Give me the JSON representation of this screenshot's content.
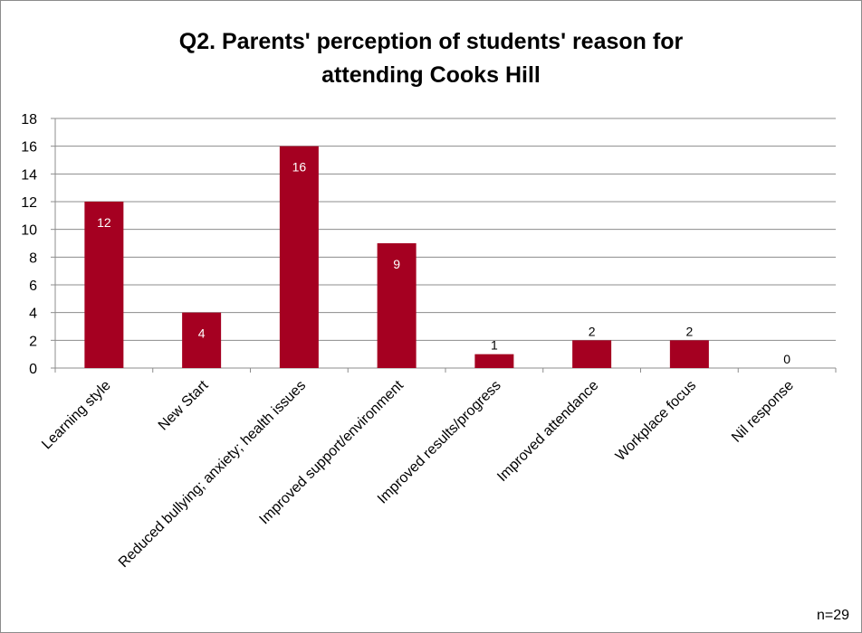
{
  "chart_data": {
    "type": "bar",
    "title_lines": [
      "Q2. Parents' perception of students' reason for",
      "attending Cooks Hill"
    ],
    "categories": [
      "Learning style",
      "New Start",
      "Reduced bullying; anxiety; health issues",
      "Improved support/environment",
      "Improved results/progress",
      "Improved attendance",
      "Workplace focus",
      "Nil response"
    ],
    "values": [
      12,
      4,
      16,
      9,
      1,
      2,
      2,
      0
    ],
    "ylim": [
      0,
      18
    ],
    "yticks": [
      0,
      2,
      4,
      6,
      8,
      10,
      12,
      14,
      16,
      18
    ],
    "grid": true,
    "bar_color": "#a50021",
    "note": "n=29"
  }
}
